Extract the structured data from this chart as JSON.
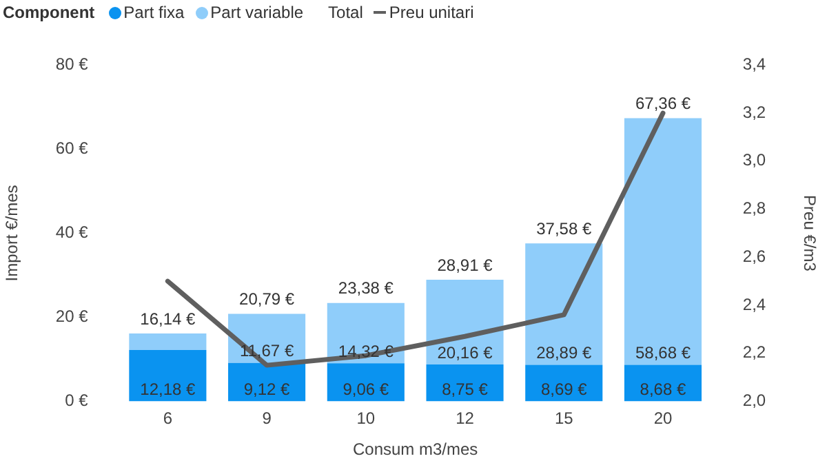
{
  "chart_data": {
    "type": "bar",
    "stacked": true,
    "legend_title": "Component",
    "legend": "top left",
    "xlabel": "Consum m3/mes",
    "ylabel": "Import €/mes",
    "y2label": "Preu €/m3",
    "categories": [
      "6",
      "9",
      "10",
      "12",
      "15",
      "20"
    ],
    "series": [
      {
        "name": "Part fixa",
        "color": "#0a93f0",
        "values": [
          12.18,
          9.12,
          9.06,
          8.75,
          8.69,
          8.68
        ],
        "value_labels": [
          "12,18 €",
          "9,12 €",
          "9,06 €",
          "8,75 €",
          "8,69 €",
          "8,68 €"
        ]
      },
      {
        "name": "Part variable",
        "color": "#8fcdfa",
        "values": [
          3.96,
          11.67,
          14.32,
          20.16,
          28.89,
          58.68
        ],
        "value_labels": [
          null,
          "11,67 €",
          "14,32 €",
          "20,16 €",
          "28,89 €",
          "58,68 €"
        ]
      },
      {
        "name": "Preu unitari",
        "type": "line",
        "axis": "y2",
        "color": "#5f5f5f",
        "marker": "none",
        "values": [
          2.5,
          2.15,
          2.19,
          2.27,
          2.36,
          3.2
        ]
      }
    ],
    "totals": [
      "16,14 €",
      "20,79 €",
      "23,38 €",
      "28,91 €",
      "37,58 €",
      "67,36 €"
    ],
    "annotations": [
      "Total"
    ],
    "ylim": [
      0,
      80
    ],
    "yticks": [
      {
        "value": 0,
        "label": "0 €"
      },
      {
        "value": 20,
        "label": "20 €"
      },
      {
        "value": 40,
        "label": "40 €"
      },
      {
        "value": 60,
        "label": "60 €"
      },
      {
        "value": 80,
        "label": "80 €"
      }
    ],
    "y2lim": [
      2.0,
      3.4
    ],
    "y2ticks": [
      {
        "value": 2.0,
        "label": "2,0"
      },
      {
        "value": 2.2,
        "label": "2,2"
      },
      {
        "value": 2.4,
        "label": "2,4"
      },
      {
        "value": 2.6,
        "label": "2,6"
      },
      {
        "value": 2.8,
        "label": "2,8"
      },
      {
        "value": 3.0,
        "label": "3,0"
      },
      {
        "value": 3.2,
        "label": "3,2"
      },
      {
        "value": 3.4,
        "label": "3,4"
      }
    ],
    "grid": false
  }
}
